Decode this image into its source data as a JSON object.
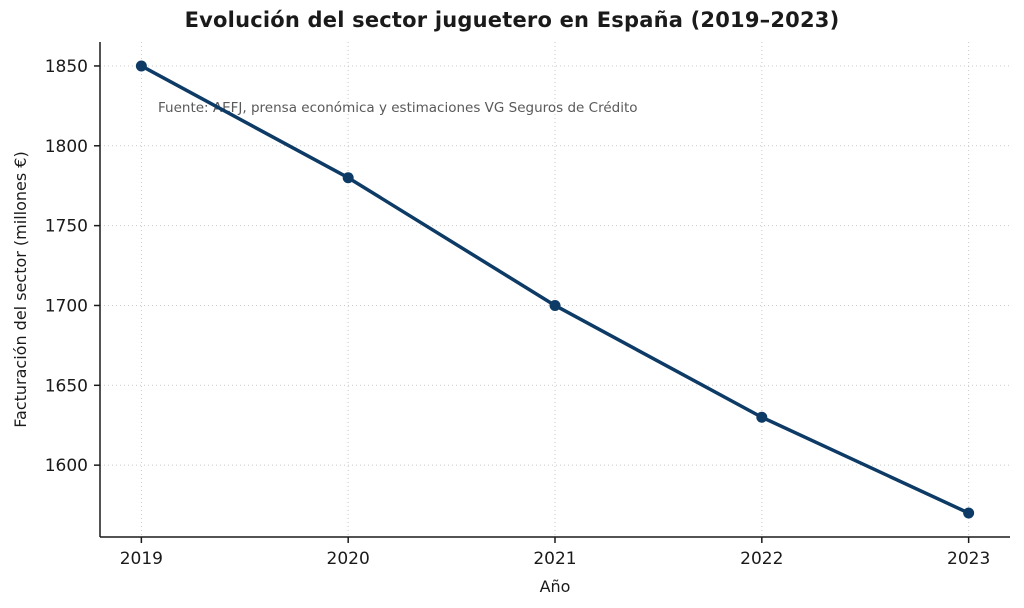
{
  "chart_data": {
    "type": "line",
    "title": "Evolución del sector juguetero en España (2019–2023)",
    "xlabel": "Año",
    "ylabel": "Facturación del sector (millones €)",
    "source_note": "Fuente: AEFJ, prensa económica y estimaciones VG Seguros de Crédito",
    "categories": [
      2019,
      2020,
      2021,
      2022,
      2023
    ],
    "series": [
      {
        "name": "Facturación del sector (millones €)",
        "values": [
          1850,
          1780,
          1700,
          1630,
          1570
        ]
      }
    ],
    "xlim": [
      2018.8,
      2023.2
    ],
    "ylim": [
      1555,
      1865
    ],
    "yticks": [
      1600,
      1650,
      1700,
      1750,
      1800,
      1850
    ],
    "xticks": [
      2019,
      2020,
      2021,
      2022,
      2023
    ],
    "grid": true,
    "grid_style": "dotted",
    "legend_position": "none",
    "line_color": "#0d3b66",
    "marker_color": "#0d3b66",
    "grid_color": "#c9c9c9",
    "axis_color": "#1a1a1a",
    "note_color": "#595959"
  }
}
